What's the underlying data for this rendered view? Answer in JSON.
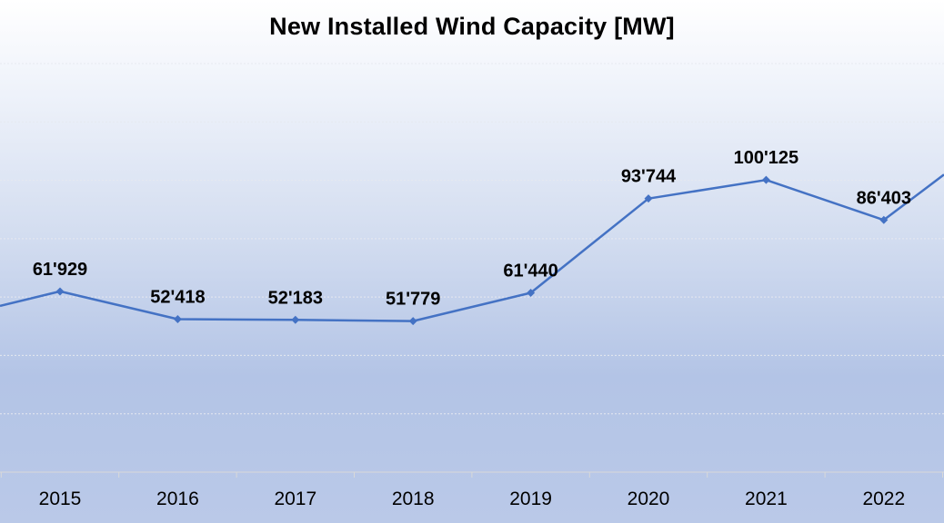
{
  "chart_data": {
    "type": "line",
    "title": "New Installed Wind Capacity [MW]",
    "categories": [
      "2015",
      "2016",
      "2017",
      "2018",
      "2019",
      "2020",
      "2021",
      "2022"
    ],
    "series": [
      {
        "values": [
          61929,
          52418,
          52183,
          51779,
          61440,
          93744,
          100125,
          86403
        ],
        "data_labels": [
          "61'929",
          "52'418",
          "52'183",
          "51'779",
          "61'440",
          "93'744",
          "100'125",
          "86'403"
        ],
        "color": "#4472c4"
      }
    ],
    "ylim": [
      0,
      140000
    ],
    "grid": true,
    "legend": "none"
  }
}
